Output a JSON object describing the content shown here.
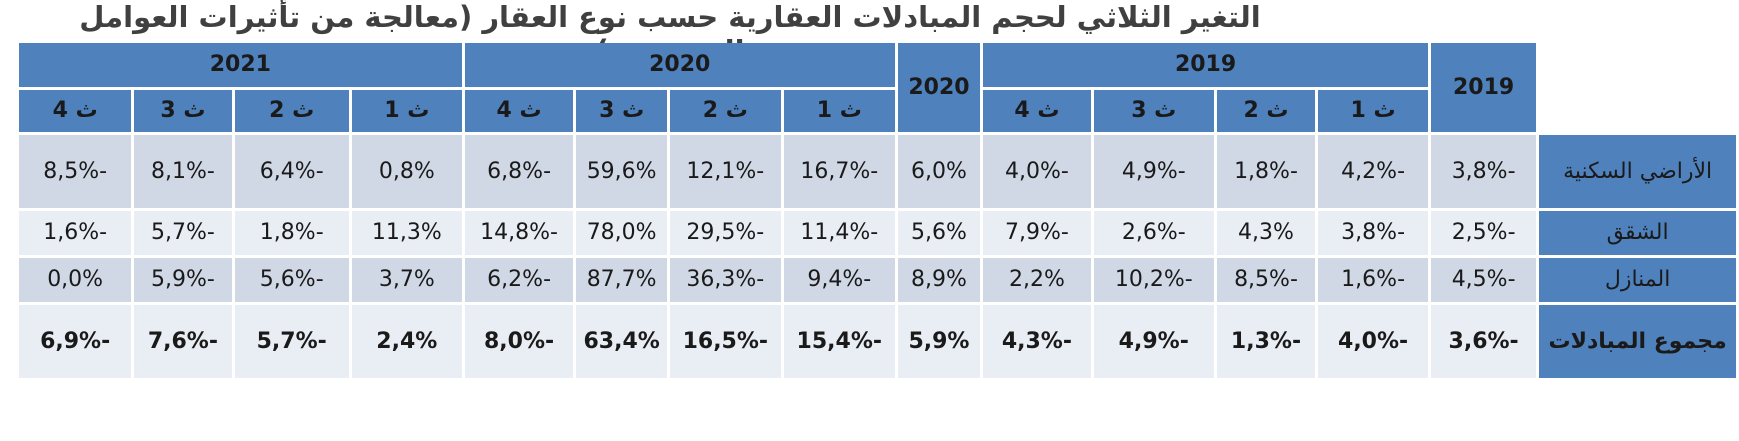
{
  "title": "التغير الثلاثي لحجم المبادلات العقارية حسب نوع العقار (معالجة من تأثيرات العوامل الموسمية)",
  "header": {
    "annual_2019": "2019",
    "group_2019": "2019",
    "annual_2020": "2020",
    "group_2020": "2020",
    "group_2021": "2021",
    "quarters": [
      "ث 1",
      "ث 2",
      "ث 3",
      "ث 4"
    ]
  },
  "rows": [
    {
      "label": "الأراضي السكنية",
      "annual_2019": "-3,8%",
      "q2019": [
        "-4,2%",
        "-1,8%",
        "-4,9%",
        "-4,0%"
      ],
      "annual_2020": "6,0%",
      "q2020": [
        "-16,7%",
        "-12,1%",
        "59,6%",
        "-6,8%"
      ],
      "q2021": [
        "0,8%",
        "-6,4%",
        "-8,1%",
        "-8,5%"
      ]
    },
    {
      "label": "الشقق",
      "annual_2019": "-2,5%",
      "q2019": [
        "-3,8%",
        "4,3%",
        "-2,6%",
        "-7,9%"
      ],
      "annual_2020": "5,6%",
      "q2020": [
        "-11,4%",
        "-29,5%",
        "78,0%",
        "-14,8%"
      ],
      "q2021": [
        "11,3%",
        "-1,8%",
        "-5,7%",
        "-1,6%"
      ]
    },
    {
      "label": "المنازل",
      "annual_2019": "-4,5%",
      "q2019": [
        "-1,6%",
        "-8,5%",
        "-10,2%",
        "2,2%"
      ],
      "annual_2020": "8,9%",
      "q2020": [
        "-9,4%",
        "-36,3%",
        "87,7%",
        "-6,2%"
      ],
      "q2021": [
        "3,7%",
        "-5,6%",
        "-5,9%",
        "0,0%"
      ]
    },
    {
      "label": "مجموع المبادلات",
      "annual_2019": "-3,6%",
      "q2019": [
        "-4,0%",
        "-1,3%",
        "-4,9%",
        "-4,3%"
      ],
      "annual_2020": "5,9%",
      "q2020": [
        "-15,4%",
        "-16,5%",
        "63,4%",
        "-8,0%"
      ],
      "q2021": [
        "2,4%",
        "-5,7%",
        "-7,6%",
        "-6,9%"
      ]
    }
  ]
}
